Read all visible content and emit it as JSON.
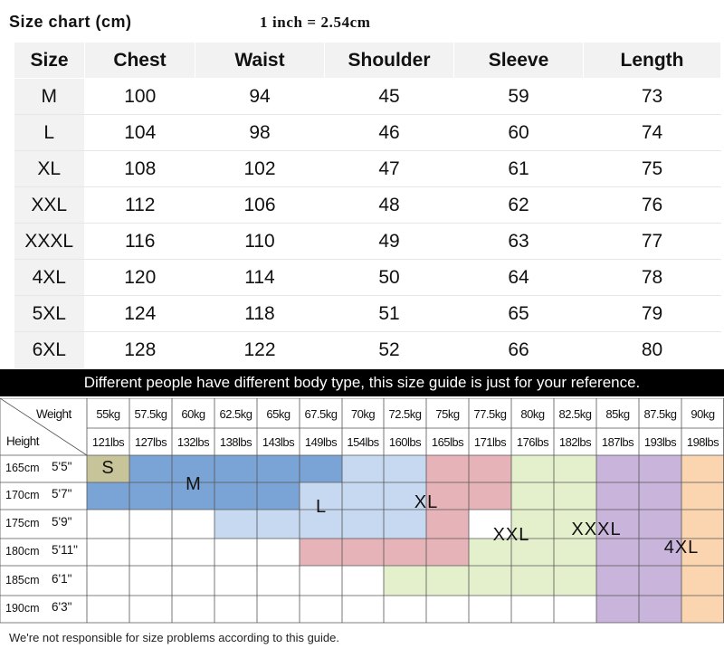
{
  "header": {
    "title": "Size chart (cm)",
    "inch_note": "1 inch = 2.54cm"
  },
  "size_table": {
    "columns": [
      "Size",
      "Chest",
      "Waist",
      "Shoulder",
      "Sleeve",
      "Length"
    ],
    "rows": [
      [
        "M",
        "100",
        "94",
        "45",
        "59",
        "73"
      ],
      [
        "L",
        "104",
        "98",
        "46",
        "60",
        "74"
      ],
      [
        "XL",
        "108",
        "102",
        "47",
        "61",
        "75"
      ],
      [
        "XXL",
        "112",
        "106",
        "48",
        "62",
        "76"
      ],
      [
        "XXXL",
        "116",
        "110",
        "49",
        "63",
        "77"
      ],
      [
        "4XL",
        "120",
        "114",
        "50",
        "64",
        "78"
      ],
      [
        "5XL",
        "124",
        "118",
        "51",
        "65",
        "79"
      ],
      [
        "6XL",
        "128",
        "122",
        "52",
        "66",
        "80"
      ]
    ]
  },
  "banner": "Different people have different body type, this size guide is just for your reference.",
  "guide": {
    "weight_label": "Weight",
    "height_label": "Height",
    "weights_kg": [
      "55kg",
      "57.5kg",
      "60kg",
      "62.5kg",
      "65kg",
      "67.5kg",
      "70kg",
      "72.5kg",
      "75kg",
      "77.5kg",
      "80kg",
      "82.5kg",
      "85kg",
      "87.5kg",
      "90kg"
    ],
    "weights_lbs": [
      "121lbs",
      "127lbs",
      "132lbs",
      "138lbs",
      "143lbs",
      "149lbs",
      "154lbs",
      "160lbs",
      "165lbs",
      "171lbs",
      "176lbs",
      "182lbs",
      "187lbs",
      "193lbs",
      "198lbs"
    ],
    "heights": [
      {
        "cm": "165cm",
        "ft": "5'5\""
      },
      {
        "cm": "170cm",
        "ft": "5'7\""
      },
      {
        "cm": "175cm",
        "ft": "5'9\""
      },
      {
        "cm": "180cm",
        "ft": "5'11\""
      },
      {
        "cm": "185cm",
        "ft": "6'1\""
      },
      {
        "cm": "190cm",
        "ft": "6'3\""
      }
    ],
    "sizes": [
      {
        "label": "S",
        "color": "#c8c49a"
      },
      {
        "label": "M",
        "color": "#7ba4d6"
      },
      {
        "label": "L",
        "color": "#c6d9f0"
      },
      {
        "label": "XL",
        "color": "#e6b4b8"
      },
      {
        "label": "XXL",
        "color": "#e4f0cc"
      },
      {
        "label": "XXXL",
        "color": "#c9b5dc"
      },
      {
        "label": "4XL",
        "color": "#fbd5b0"
      }
    ]
  },
  "footer": "We're not responsible for size problems according to this guide."
}
